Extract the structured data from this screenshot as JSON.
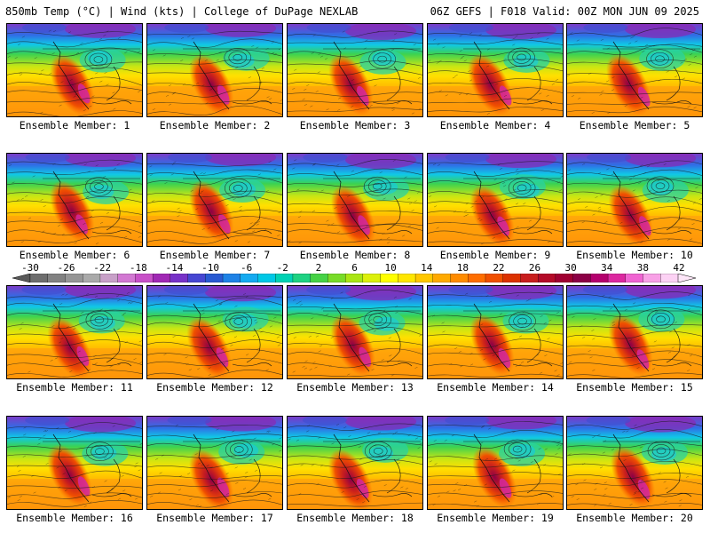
{
  "header": {
    "left": "850mb Temp (°C) | Wind (kts) | College of DuPage NEXLAB",
    "right": "06Z GEFS | F018 Valid: 00Z MON JUN 09 2025"
  },
  "panels": [
    {
      "label": "Ensemble Member: 1"
    },
    {
      "label": "Ensemble Member: 2"
    },
    {
      "label": "Ensemble Member: 3"
    },
    {
      "label": "Ensemble Member: 4"
    },
    {
      "label": "Ensemble Member: 5"
    },
    {
      "label": "Ensemble Member: 6"
    },
    {
      "label": "Ensemble Member: 7"
    },
    {
      "label": "Ensemble Member: 8"
    },
    {
      "label": "Ensemble Member: 9"
    },
    {
      "label": "Ensemble Member: 10"
    },
    {
      "label": "Ensemble Member: 11"
    },
    {
      "label": "Ensemble Member: 12"
    },
    {
      "label": "Ensemble Member: 13"
    },
    {
      "label": "Ensemble Member: 14"
    },
    {
      "label": "Ensemble Member: 15"
    },
    {
      "label": "Ensemble Member: 16"
    },
    {
      "label": "Ensemble Member: 17"
    },
    {
      "label": "Ensemble Member: 18"
    },
    {
      "label": "Ensemble Member: 19"
    },
    {
      "label": "Ensemble Member: 20"
    }
  ],
  "colorbar": {
    "tick_labels": [
      "-30",
      "-26",
      "-22",
      "-18",
      "-14",
      "-10",
      "-6",
      "-2",
      "2",
      "6",
      "10",
      "14",
      "18",
      "22",
      "26",
      "30",
      "34",
      "38",
      "42"
    ],
    "colors": [
      "#6e6e6e",
      "#828282",
      "#969696",
      "#aaaaaa",
      "#c8a0c8",
      "#d278d2",
      "#c850c8",
      "#a028b4",
      "#7832c8",
      "#4646d2",
      "#285ad2",
      "#1e82e6",
      "#14aaf0",
      "#00c8e6",
      "#00d2b4",
      "#1ed282",
      "#46d246",
      "#78dc28",
      "#aae614",
      "#dcf00a",
      "#ffff00",
      "#ffe600",
      "#ffc800",
      "#ffaa00",
      "#ff8c00",
      "#ff6e00",
      "#f05000",
      "#dc3200",
      "#c81e1e",
      "#b40a28",
      "#a00032",
      "#8c0046",
      "#b4006e",
      "#dc28a0",
      "#f064d2",
      "#f8a0e6",
      "#fcd2f4"
    ]
  }
}
